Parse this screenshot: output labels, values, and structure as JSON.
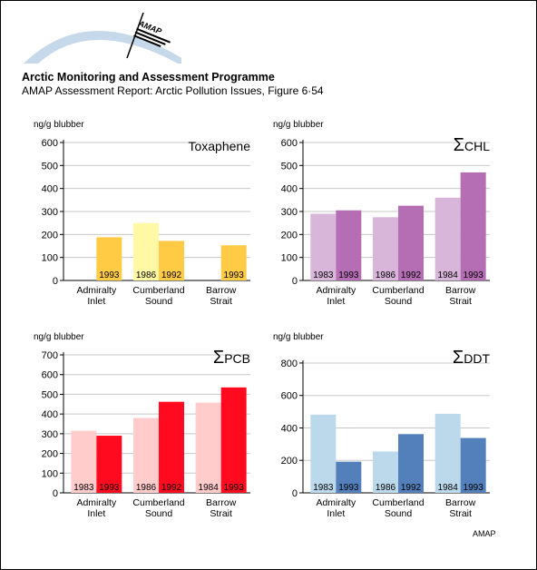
{
  "header": {
    "logo_text": "AMAP",
    "title": "Arctic Monitoring and Assessment Programme",
    "subtitle": "AMAP Assessment Report: Arctic Pollution Issues, Figure 6·54"
  },
  "footer": {
    "credit": "AMAP"
  },
  "chart_data": [
    {
      "type": "bar",
      "title": "Toxaphene",
      "sigma": "",
      "ylabel": "ng/g blubber",
      "ylim": [
        0,
        600
      ],
      "yticks": [
        0,
        100,
        200,
        300,
        400,
        500,
        600
      ],
      "colors": {
        "light": "#FFF8A4",
        "dark": "#FFCB44"
      },
      "groups": [
        {
          "label": [
            "Admiralty",
            "Inlet"
          ],
          "bars": [
            {
              "year": "1993",
              "value": 188,
              "shade": "dark"
            }
          ]
        },
        {
          "label": [
            "Cumberland",
            "Sound"
          ],
          "bars": [
            {
              "year": "1986",
              "value": 250,
              "shade": "light"
            },
            {
              "year": "1992",
              "value": 172,
              "shade": "dark"
            }
          ]
        },
        {
          "label": [
            "Barrow",
            "Strait"
          ],
          "bars": [
            {
              "year": "1993",
              "value": 153,
              "shade": "dark"
            }
          ]
        }
      ]
    },
    {
      "type": "bar",
      "title": "CHL",
      "sigma": "Σ",
      "ylabel": "ng/g blubber",
      "ylim": [
        0,
        600
      ],
      "yticks": [
        0,
        100,
        200,
        300,
        400,
        500,
        600
      ],
      "colors": {
        "light": "#D8B6DA",
        "dark": "#B56EB4"
      },
      "groups": [
        {
          "label": [
            "Admiralty",
            "Inlet"
          ],
          "bars": [
            {
              "year": "1983",
              "value": 290,
              "shade": "light"
            },
            {
              "year": "1993",
              "value": 305,
              "shade": "dark"
            }
          ]
        },
        {
          "label": [
            "Cumberland",
            "Sound"
          ],
          "bars": [
            {
              "year": "1986",
              "value": 275,
              "shade": "light"
            },
            {
              "year": "1992",
              "value": 325,
              "shade": "dark"
            }
          ]
        },
        {
          "label": [
            "Barrow",
            "Strait"
          ],
          "bars": [
            {
              "year": "1984",
              "value": 360,
              "shade": "light"
            },
            {
              "year": "1993",
              "value": 470,
              "shade": "dark"
            }
          ]
        }
      ]
    },
    {
      "type": "bar",
      "title": "PCB",
      "sigma": "Σ",
      "ylabel": "ng/g blubber",
      "ylim": [
        0,
        700
      ],
      "yticks": [
        0,
        100,
        200,
        300,
        400,
        500,
        600,
        700
      ],
      "colors": {
        "light": "#FFCBCB",
        "dark": "#FF0A1E"
      },
      "groups": [
        {
          "label": [
            "Admiralty",
            "Inlet"
          ],
          "bars": [
            {
              "year": "1983",
              "value": 315,
              "shade": "light"
            },
            {
              "year": "1993",
              "value": 290,
              "shade": "dark"
            }
          ]
        },
        {
          "label": [
            "Cumberland",
            "Sound"
          ],
          "bars": [
            {
              "year": "1986",
              "value": 380,
              "shade": "light"
            },
            {
              "year": "1992",
              "value": 462,
              "shade": "dark"
            }
          ]
        },
        {
          "label": [
            "Barrow",
            "Strait"
          ],
          "bars": [
            {
              "year": "1984",
              "value": 458,
              "shade": "light"
            },
            {
              "year": "1993",
              "value": 535,
              "shade": "dark"
            }
          ]
        }
      ]
    },
    {
      "type": "bar",
      "title": "DDT",
      "sigma": "Σ",
      "ylabel": "ng/g blubber",
      "ylim": [
        0,
        850
      ],
      "yticks": [
        0,
        200,
        400,
        600,
        800
      ],
      "colors": {
        "light": "#BCD9EC",
        "dark": "#5380BA"
      },
      "groups": [
        {
          "label": [
            "Admiralty",
            "Inlet"
          ],
          "bars": [
            {
              "year": "1983",
              "value": 482,
              "shade": "light"
            },
            {
              "year": "1993",
              "value": 192,
              "shade": "dark"
            }
          ]
        },
        {
          "label": [
            "Cumberland",
            "Sound"
          ],
          "bars": [
            {
              "year": "1986",
              "value": 255,
              "shade": "light"
            },
            {
              "year": "1992",
              "value": 362,
              "shade": "dark"
            }
          ]
        },
        {
          "label": [
            "Barrow",
            "Strait"
          ],
          "bars": [
            {
              "year": "1984",
              "value": 487,
              "shade": "light"
            },
            {
              "year": "1993",
              "value": 338,
              "shade": "dark"
            }
          ]
        }
      ]
    }
  ]
}
